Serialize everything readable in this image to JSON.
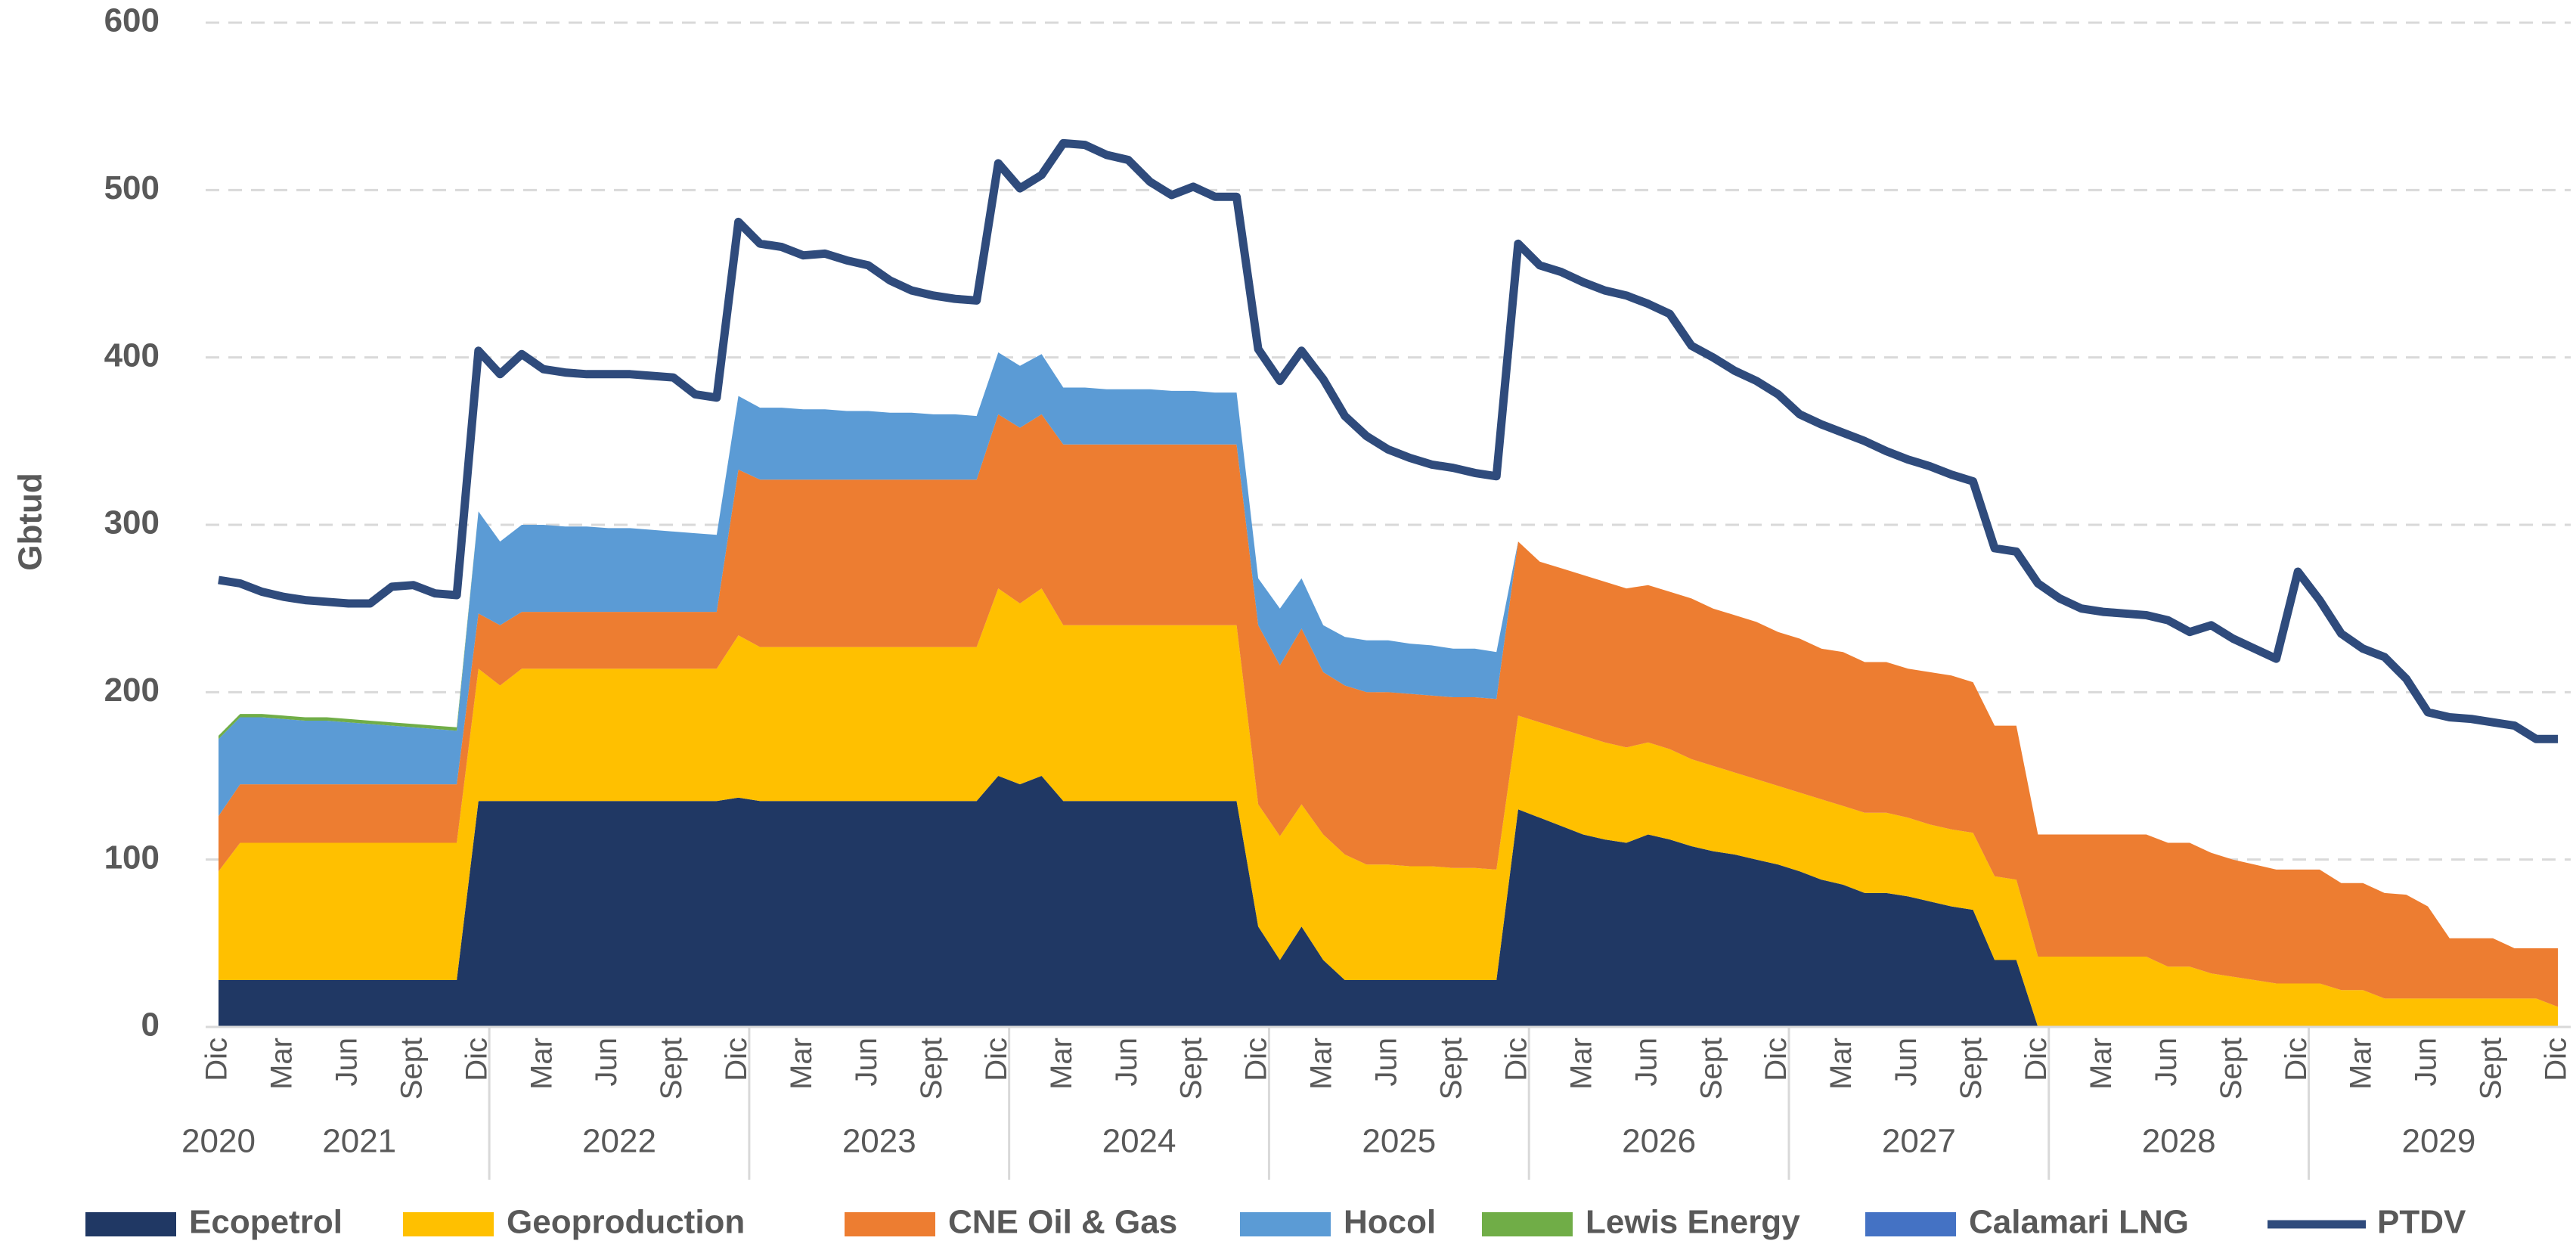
{
  "chart_data": {
    "type": "area",
    "y_label": "Gbtud",
    "ylim": [
      0,
      600
    ],
    "yticks": [
      0,
      100,
      200,
      300,
      400,
      500,
      600
    ],
    "grid": true,
    "stacked": true,
    "legend": "bottom",
    "categories": [
      "Dic",
      null,
      null,
      "Mar",
      null,
      null,
      "Jun",
      null,
      null,
      "Sept",
      null,
      null,
      "Dic",
      null,
      null,
      "Mar",
      null,
      null,
      "Jun",
      null,
      null,
      "Sept",
      null,
      null,
      "Dic",
      null,
      null,
      "Mar",
      null,
      null,
      "Jun",
      null,
      null,
      "Sept",
      null,
      null,
      "Dic",
      null,
      null,
      "Mar",
      null,
      null,
      "Jun",
      null,
      null,
      "Sept",
      null,
      null,
      "Dic",
      null,
      null,
      "Mar",
      null,
      null,
      "Jun",
      null,
      null,
      "Sept",
      null,
      null,
      "Dic",
      null,
      null,
      "Mar",
      null,
      null,
      "Jun",
      null,
      null,
      "Sept",
      null,
      null,
      "Dic",
      null,
      null,
      "Mar",
      null,
      null,
      "Jun",
      null,
      null,
      "Sept",
      null,
      null,
      "Dic",
      null,
      null,
      "Mar",
      null,
      null,
      "Jun",
      null,
      null,
      "Sept",
      null,
      null,
      "Dic",
      null,
      null,
      "Mar",
      null,
      null,
      "Jun",
      null,
      null,
      "Sept",
      null,
      null,
      "Dic"
    ],
    "x_groups": [
      "2020",
      "2021",
      "2022",
      "2023",
      "2024",
      "2025",
      "2026",
      "2027",
      "2028",
      "2029"
    ],
    "series": [
      {
        "name": "Ecopetrol",
        "color": "#203864",
        "values": [
          28,
          28,
          28,
          28,
          28,
          28,
          28,
          28,
          28,
          28,
          28,
          28,
          135,
          135,
          135,
          135,
          135,
          135,
          135,
          135,
          135,
          135,
          135,
          135,
          137,
          135,
          135,
          135,
          135,
          135,
          135,
          135,
          135,
          135,
          135,
          135,
          150,
          145,
          150,
          135,
          135,
          135,
          135,
          135,
          135,
          135,
          135,
          135,
          60,
          40,
          60,
          40,
          28,
          28,
          28,
          28,
          28,
          28,
          28,
          28,
          130,
          125,
          120,
          115,
          112,
          110,
          115,
          112,
          108,
          105,
          103,
          100,
          97,
          93,
          88,
          85,
          80,
          80,
          78,
          75,
          72,
          70,
          40,
          40,
          0,
          0,
          0,
          0,
          0,
          0,
          0,
          0,
          0,
          0,
          0,
          0,
          0,
          0,
          0,
          0,
          0,
          0,
          0,
          0,
          0,
          0,
          0,
          0,
          0
        ]
      },
      {
        "name": "Geoproduction",
        "color": "#ffc000",
        "values": [
          65,
          82,
          82,
          82,
          82,
          82,
          82,
          82,
          82,
          82,
          82,
          82,
          79,
          69,
          79,
          79,
          79,
          79,
          79,
          79,
          79,
          79,
          79,
          79,
          97,
          92,
          92,
          92,
          92,
          92,
          92,
          92,
          92,
          92,
          92,
          92,
          112,
          108,
          112,
          105,
          105,
          105,
          105,
          105,
          105,
          105,
          105,
          105,
          73,
          74,
          73,
          75,
          75,
          69,
          69,
          68,
          68,
          67,
          67,
          66,
          56,
          57,
          58,
          59,
          58,
          57,
          55,
          54,
          52,
          51,
          49,
          48,
          47,
          47,
          48,
          47,
          48,
          48,
          47,
          46,
          46,
          46,
          50,
          48,
          42,
          42,
          42,
          42,
          42,
          42,
          36,
          36,
          32,
          30,
          28,
          26,
          26,
          26,
          22,
          22,
          17,
          17,
          17,
          17,
          17,
          17,
          17,
          17,
          12
        ]
      },
      {
        "name": "CNE Oil & Gas",
        "color": "#ed7d31",
        "values": [
          33,
          35,
          35,
          35,
          35,
          35,
          35,
          35,
          35,
          35,
          35,
          35,
          33,
          36,
          34,
          34,
          34,
          34,
          34,
          34,
          34,
          34,
          34,
          34,
          99,
          100,
          100,
          100,
          100,
          100,
          100,
          100,
          100,
          100,
          100,
          100,
          104,
          105,
          104,
          108,
          108,
          108,
          108,
          108,
          108,
          108,
          108,
          108,
          107,
          102,
          105,
          97,
          101,
          103,
          103,
          103,
          102,
          102,
          102,
          102,
          104,
          96,
          96,
          96,
          96,
          95,
          94,
          94,
          96,
          94,
          94,
          94,
          92,
          92,
          90,
          92,
          90,
          90,
          89,
          91,
          92,
          90,
          90,
          92,
          73,
          73,
          73,
          73,
          73,
          73,
          74,
          74,
          72,
          70,
          69,
          68,
          68,
          68,
          64,
          64,
          63,
          62,
          55,
          36,
          36,
          36,
          30,
          30,
          35
        ]
      },
      {
        "name": "Hocol",
        "color": "#5b9bd5",
        "values": [
          46,
          40,
          40,
          39,
          38,
          38,
          37,
          36,
          35,
          34,
          33,
          32,
          61,
          50,
          52,
          52,
          51,
          51,
          50,
          50,
          49,
          48,
          47,
          46,
          44,
          43,
          43,
          42,
          42,
          41,
          41,
          40,
          40,
          39,
          39,
          38,
          37,
          37,
          36,
          34,
          34,
          33,
          33,
          33,
          32,
          32,
          31,
          31,
          28,
          34,
          30,
          28,
          29,
          31,
          31,
          30,
          30,
          29,
          29,
          28,
          0,
          0,
          0,
          0,
          0,
          0,
          0,
          0,
          0,
          0,
          0,
          0,
          0,
          0,
          0,
          0,
          0,
          0,
          0,
          0,
          0,
          0,
          0,
          0,
          0,
          0,
          0,
          0,
          0,
          0,
          0,
          0,
          0,
          0,
          0,
          0,
          0,
          0,
          0,
          0,
          0,
          0,
          0,
          0,
          0,
          0,
          0,
          0,
          0
        ]
      },
      {
        "name": "Lewis Energy",
        "color": "#70ad47",
        "values": [
          2,
          2,
          2,
          2,
          2,
          2,
          2,
          2,
          2,
          2,
          2,
          2,
          0,
          0,
          0,
          0,
          0,
          0,
          0,
          0,
          0,
          0,
          0,
          0,
          0,
          0,
          0,
          0,
          0,
          0,
          0,
          0,
          0,
          0,
          0,
          0,
          0,
          0,
          0,
          0,
          0,
          0,
          0,
          0,
          0,
          0,
          0,
          0,
          0,
          0,
          0,
          0,
          0,
          0,
          0,
          0,
          0,
          0,
          0,
          0,
          0,
          0,
          0,
          0,
          0,
          0,
          0,
          0,
          0,
          0,
          0,
          0,
          0,
          0,
          0,
          0,
          0,
          0,
          0,
          0,
          0,
          0,
          0,
          0,
          0,
          0,
          0,
          0,
          0,
          0,
          0,
          0,
          0,
          0,
          0,
          0,
          0,
          0,
          0,
          0,
          0,
          0,
          0,
          0,
          0,
          0,
          0,
          0,
          0
        ]
      },
      {
        "name": "Calamari LNG",
        "color": "#4472c4",
        "values": [
          0,
          0,
          0,
          0,
          0,
          0,
          0,
          0,
          0,
          0,
          0,
          0,
          0,
          0,
          0,
          0,
          0,
          0,
          0,
          0,
          0,
          0,
          0,
          0,
          0,
          0,
          0,
          0,
          0,
          0,
          0,
          0,
          0,
          0,
          0,
          0,
          0,
          0,
          0,
          0,
          0,
          0,
          0,
          0,
          0,
          0,
          0,
          0,
          0,
          0,
          0,
          0,
          0,
          0,
          0,
          0,
          0,
          0,
          0,
          0,
          0,
          0,
          0,
          0,
          0,
          0,
          0,
          0,
          0,
          0,
          0,
          0,
          0,
          0,
          0,
          0,
          0,
          0,
          0,
          0,
          0,
          0,
          0,
          0,
          0,
          0,
          0,
          0,
          0,
          0,
          0,
          0,
          0,
          0,
          0,
          0,
          0,
          0,
          0,
          0,
          0,
          0,
          0,
          0,
          0,
          0,
          0,
          0,
          0
        ]
      },
      {
        "name": "PTDV",
        "color": "#2f4b7c",
        "type": "line",
        "values": [
          267,
          265,
          260,
          257,
          255,
          254,
          253,
          253,
          263,
          264,
          259,
          258,
          404,
          390,
          402,
          393,
          391,
          390,
          390,
          390,
          389,
          388,
          378,
          376,
          481,
          468,
          466,
          461,
          462,
          458,
          455,
          446,
          440,
          437,
          435,
          434,
          516,
          501,
          509,
          528,
          527,
          521,
          518,
          505,
          497,
          502,
          496,
          496,
          405,
          386,
          404,
          387,
          365,
          353,
          345,
          340,
          336,
          334,
          331,
          329,
          468,
          455,
          451,
          445,
          440,
          437,
          432,
          426,
          407,
          400,
          392,
          386,
          378,
          366,
          360,
          355,
          350,
          344,
          339,
          335,
          330,
          326,
          286,
          284,
          265,
          256,
          250,
          248,
          247,
          246,
          243,
          236,
          240,
          232,
          226,
          220,
          272,
          255,
          235,
          226,
          221,
          208,
          188,
          185,
          184,
          182,
          180,
          172,
          172
        ]
      }
    ]
  }
}
